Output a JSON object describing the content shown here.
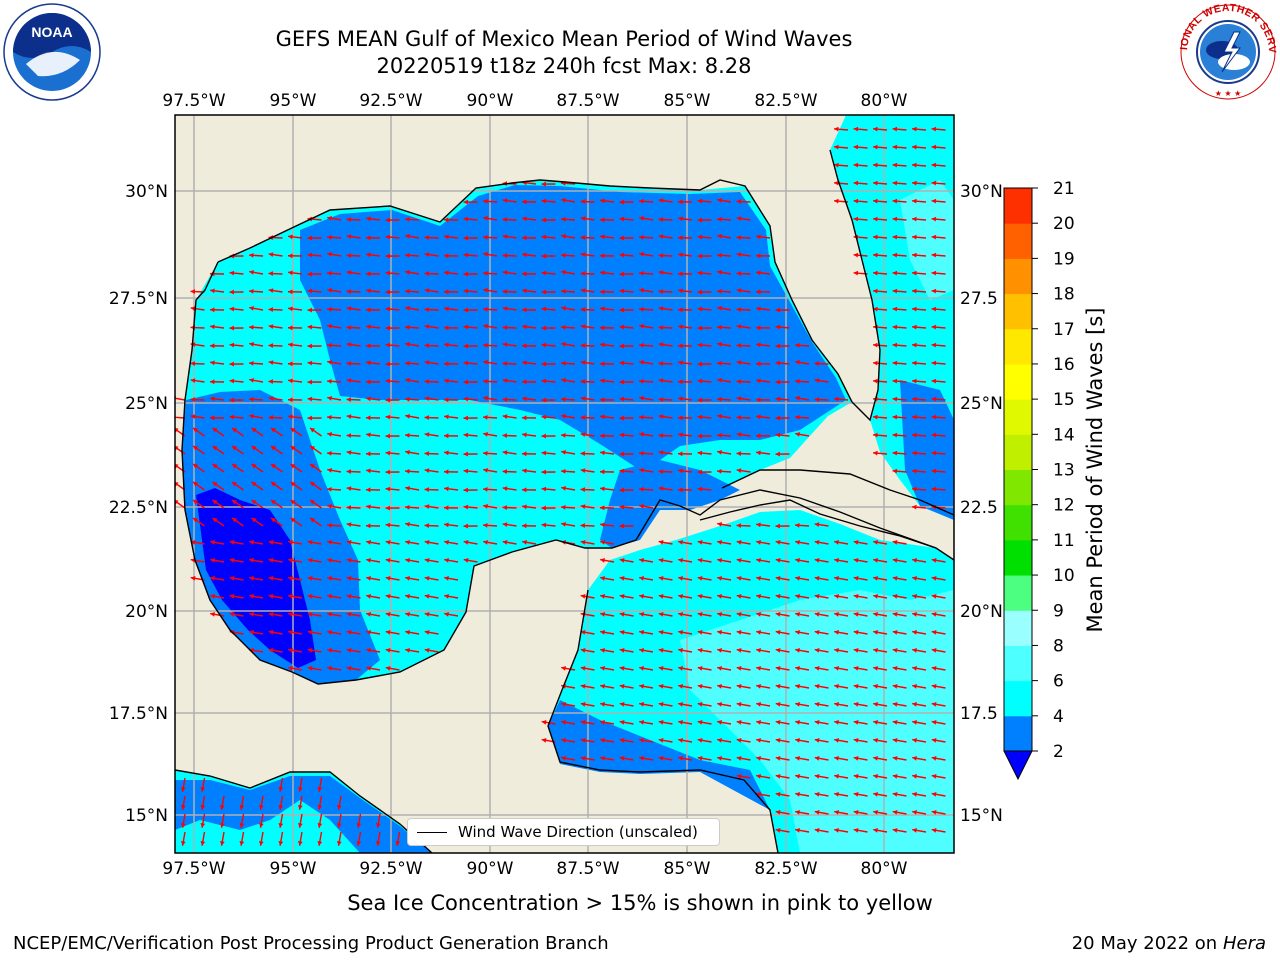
{
  "header": {
    "title_line1": "GEFS MEAN Gulf of Mexico Mean Period of Wind Waves",
    "title_line2": "20220519 t18z 240h fcst   Max: 8.28"
  },
  "logos": {
    "noaa_text": "NOAA",
    "noaa_ring_text": "NATIONAL OCEANIC AND ATMOSPHERIC ADMINISTRATION · U.S. DEPARTMENT OF COMMERCE",
    "nws_ring_text": "NATIONAL WEATHER SERVICE"
  },
  "map": {
    "lon_labels": [
      "97.5°W",
      "95°W",
      "92.5°W",
      "90°W",
      "87.5°W",
      "85°W",
      "82.5°W",
      "80°W"
    ],
    "lat_labels": [
      "30°N",
      "27.5°N",
      "25°N",
      "22.5°N",
      "20°N",
      "17.5°N",
      "15°N"
    ],
    "right_lat_labels": [
      "30°N",
      "27.5",
      "25°N",
      "22.5",
      "20°N",
      "17.5",
      "15°N"
    ],
    "legend_label": "Wind Wave Direction (unscaled)",
    "colors": {
      "land": "#efecdc",
      "ocean_2_4": "#0080ff",
      "ocean_4_6": "#00ffff",
      "ocean_6_8": "#4fffff",
      "ocean_lt2": "#0000ff",
      "arrow": "#ff0000",
      "grid": "#b0b0b0"
    }
  },
  "colorbar": {
    "label": "Mean Period of Wind Waves [s]",
    "ticks": [
      "2",
      "4",
      "6",
      "8",
      "9",
      "10",
      "11",
      "12",
      "13",
      "14",
      "15",
      "16",
      "17",
      "18",
      "19",
      "20",
      "21"
    ],
    "colors": [
      "#0080ff",
      "#00ffff",
      "#4dffff",
      "#99ffff",
      "#4dff80",
      "#00e000",
      "#40e000",
      "#80e800",
      "#c0f000",
      "#e0f800",
      "#ffff00",
      "#ffe800",
      "#ffc000",
      "#ff9000",
      "#ff6000",
      "#ff3000",
      "#ff0000"
    ],
    "extend_color": "#0000ff"
  },
  "captions": {
    "sea_ice_note": "Sea Ice Concentration > 15% is shown in pink to yellow",
    "footer_left": "NCEP/EMC/Verification Post Processing Product Generation Branch",
    "footer_date": "20 May 2022 on",
    "footer_host": "Hera"
  }
}
